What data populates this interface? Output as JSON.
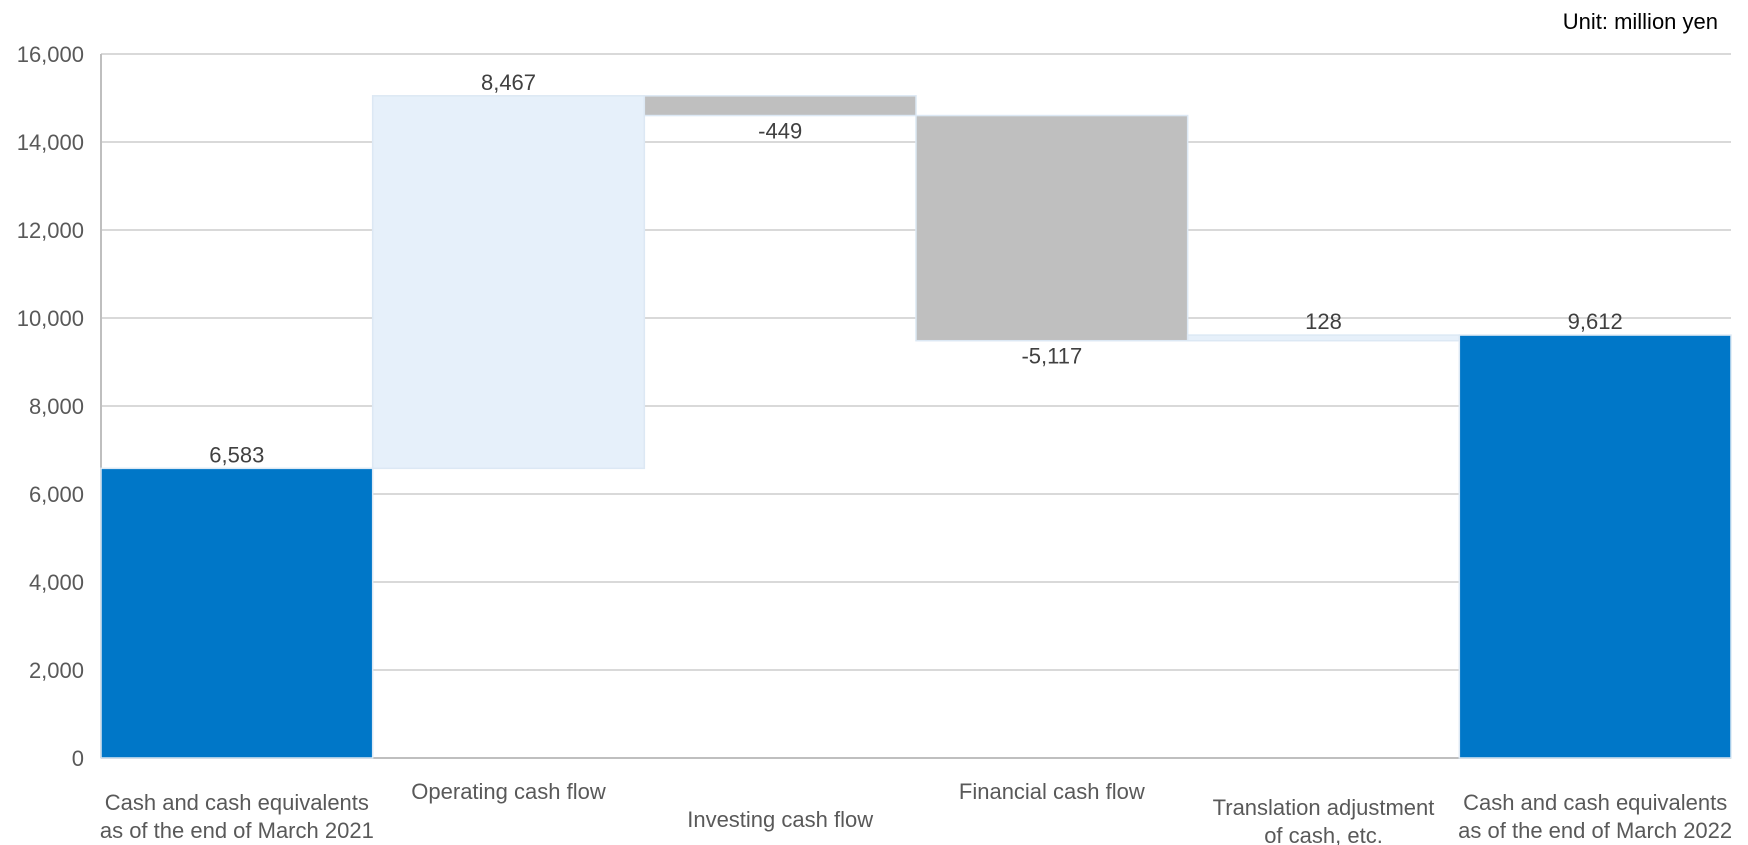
{
  "chart_data": {
    "type": "waterfall",
    "unit_label": "Unit: million yen",
    "categories": [
      [
        "Cash and cash equivalents",
        "as of the end of March 2021"
      ],
      [
        "Operating cash flow"
      ],
      [
        "Investing cash flow"
      ],
      [
        "Financial cash flow"
      ],
      [
        "Translation adjustment",
        "of cash, etc."
      ],
      [
        "Cash and cash equivalents",
        "as of the end of March 2022"
      ]
    ],
    "bars": [
      {
        "kind": "total",
        "value": 6583,
        "label": "6,583"
      },
      {
        "kind": "delta",
        "value": 8467,
        "label": "8,467"
      },
      {
        "kind": "delta",
        "value": -449,
        "label": "-449"
      },
      {
        "kind": "delta",
        "value": -5117,
        "label": "-5,117"
      },
      {
        "kind": "delta",
        "value": 128,
        "label": "128"
      },
      {
        "kind": "total",
        "value": 9612,
        "label": "9,612"
      }
    ],
    "ylim": [
      0,
      16000
    ],
    "yticks": [
      0,
      2000,
      4000,
      6000,
      8000,
      10000,
      12000,
      14000,
      16000
    ],
    "ytick_labels": [
      "0",
      "2,000",
      "4,000",
      "6,000",
      "8,000",
      "10,000",
      "12,000",
      "14,000",
      "16,000"
    ],
    "grid": true,
    "colors": {
      "total": "#0077C8",
      "increase": "#E6F0FA",
      "decrease": "#BFBFBF",
      "grid": "#D9D9D9",
      "axis": "#BFBFBF"
    }
  }
}
